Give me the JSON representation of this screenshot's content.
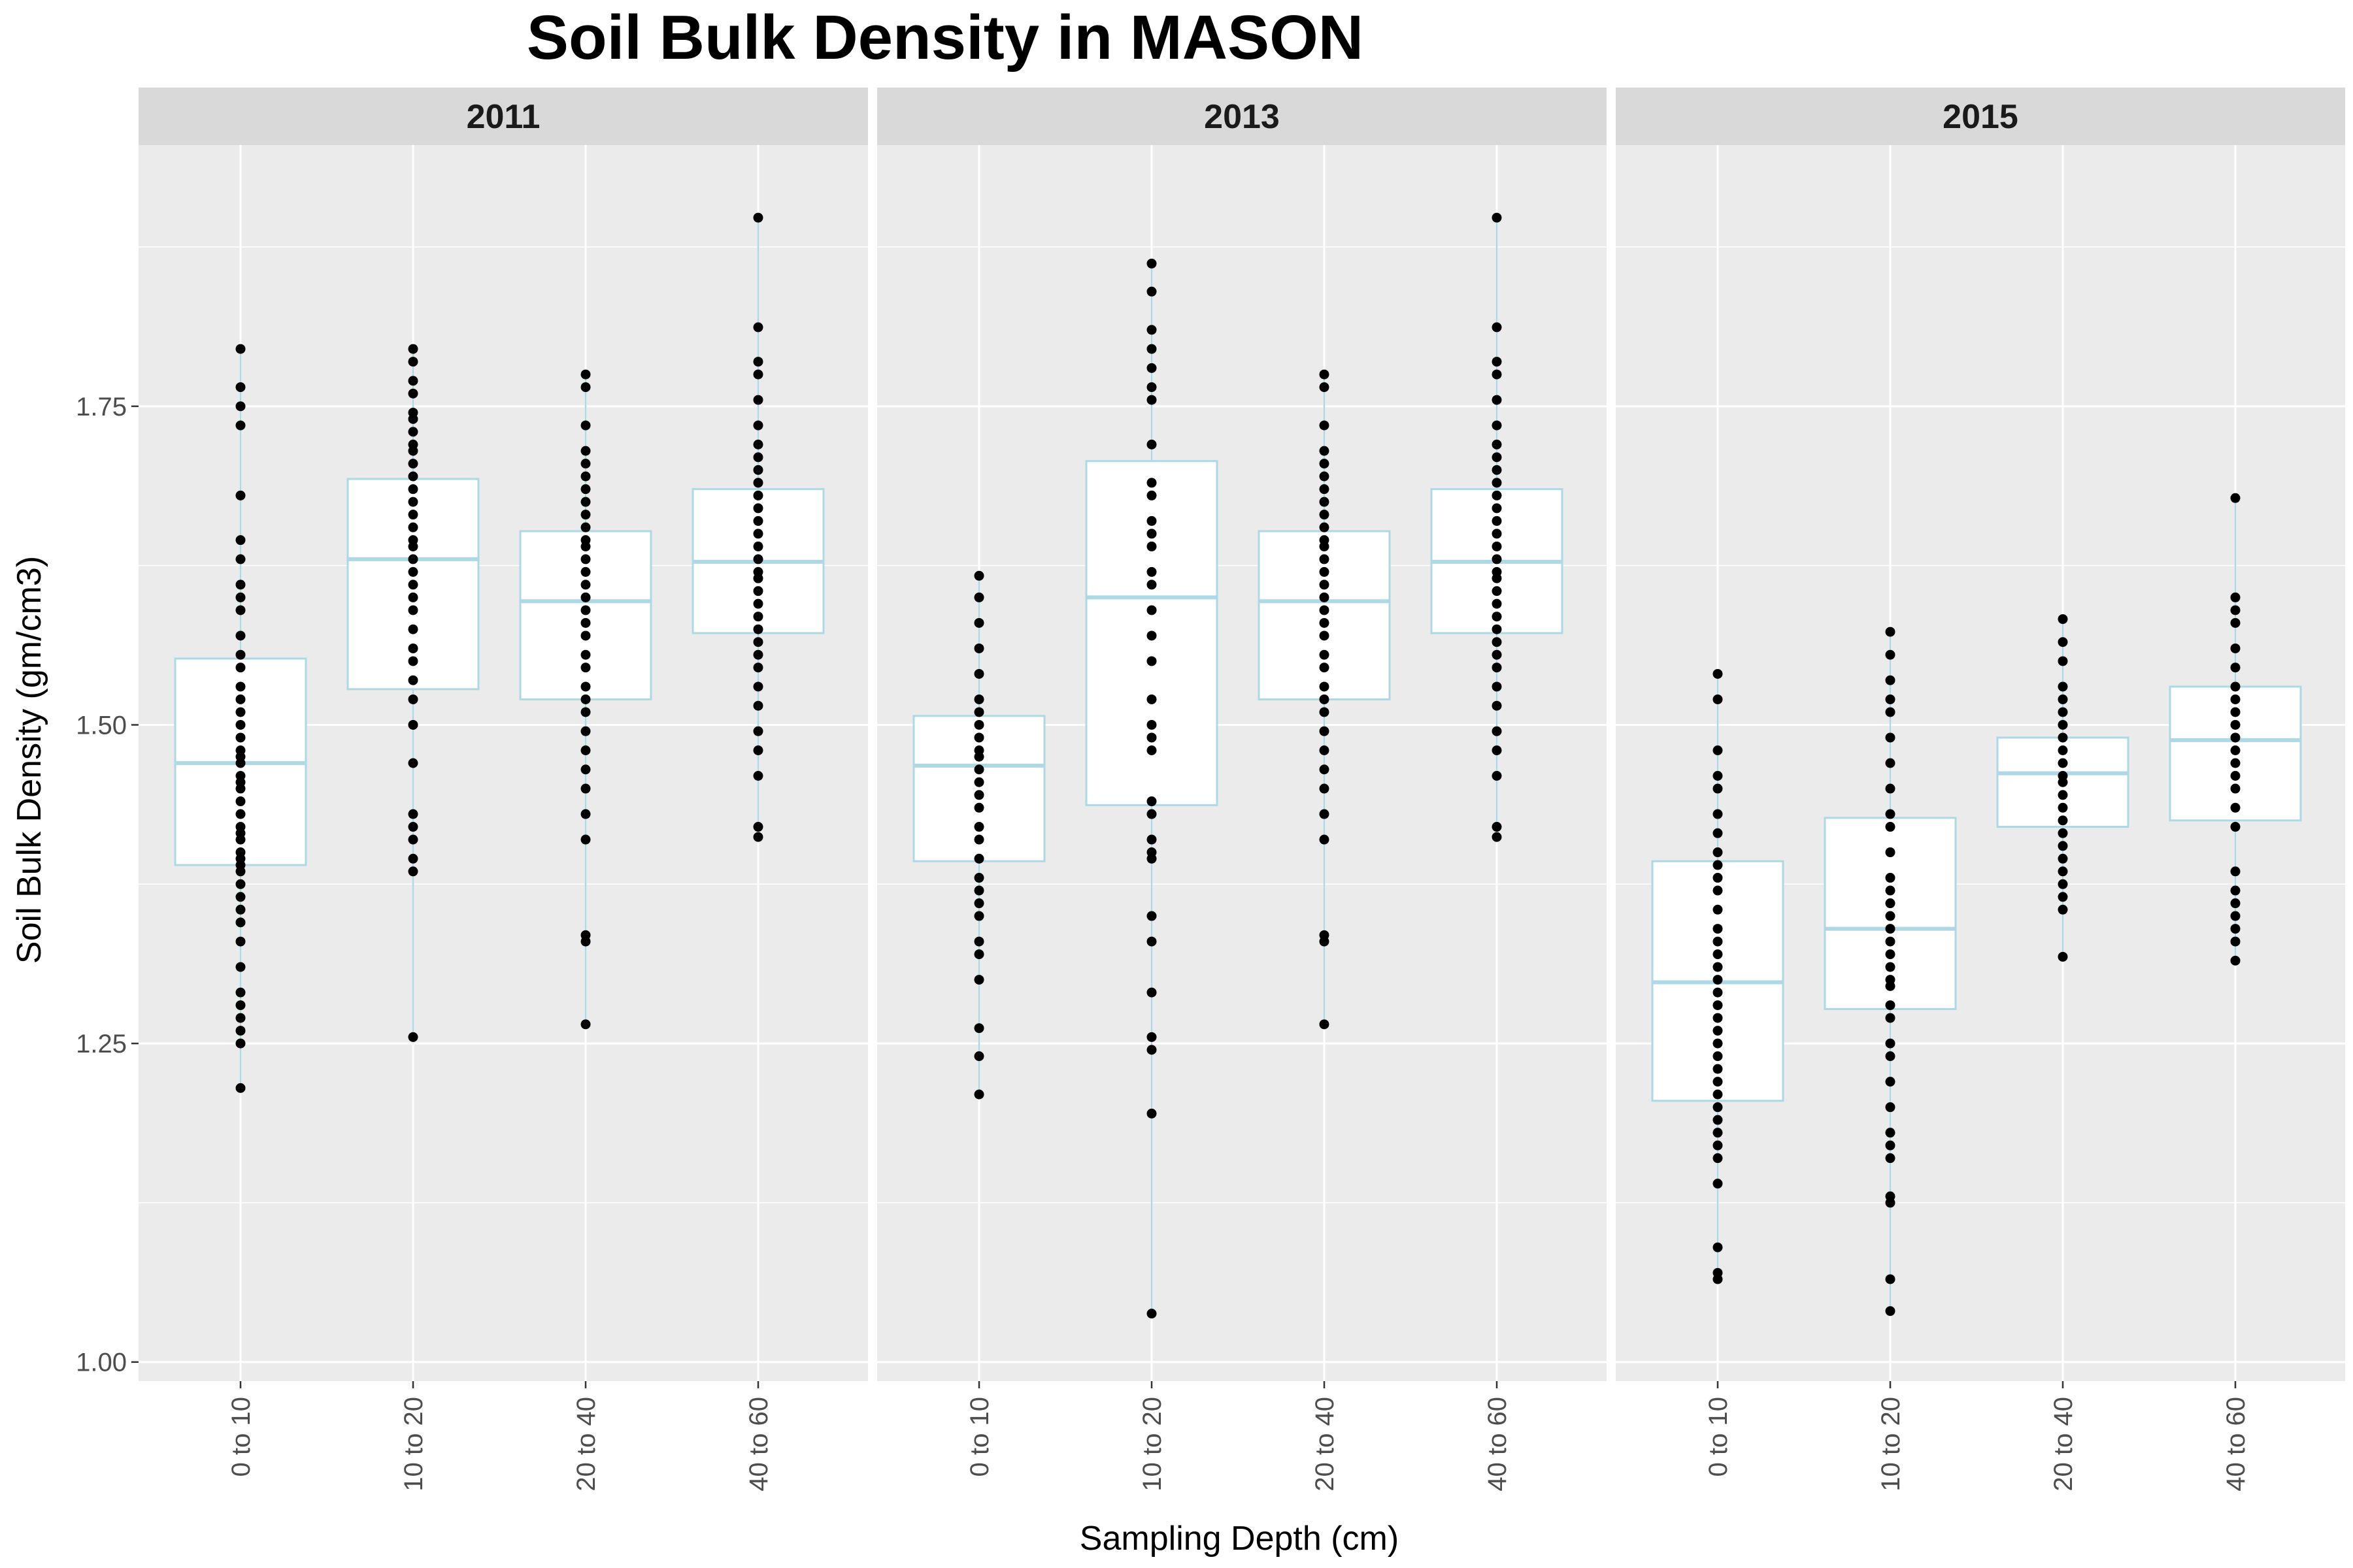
{
  "chart_data": {
    "type": "box",
    "title": "Soil Bulk Density in MASON",
    "xlabel": "Sampling Depth (cm)",
    "ylabel": "Soil Bulk Density (gm/cm3)",
    "ylim": [
      0.985,
      1.955
    ],
    "yticks": [
      "1.00",
      "1.25",
      "1.50",
      "1.75"
    ],
    "categories": [
      "0 to 10",
      "10 to 20",
      "20 to 40",
      "40 to 60"
    ],
    "grid": true,
    "colors": {
      "panel_bg": "#ebebeb",
      "grid": "#ffffff",
      "strip_bg": "#d9d9d9",
      "box_border": "#add8e6",
      "box_fill": "#ffffff",
      "point": "#000000"
    },
    "panels": [
      {
        "label": "2011",
        "boxes": [
          {
            "category": "0 to 10",
            "min": 1.215,
            "q1": 1.39,
            "median": 1.47,
            "q3": 1.552,
            "max": 1.795,
            "points": [
              1.215,
              1.25,
              1.26,
              1.27,
              1.28,
              1.29,
              1.31,
              1.33,
              1.345,
              1.355,
              1.365,
              1.375,
              1.385,
              1.39,
              1.395,
              1.4,
              1.41,
              1.415,
              1.42,
              1.43,
              1.44,
              1.45,
              1.455,
              1.46,
              1.47,
              1.475,
              1.48,
              1.49,
              1.5,
              1.51,
              1.52,
              1.53,
              1.545,
              1.555,
              1.57,
              1.59,
              1.6,
              1.61,
              1.63,
              1.645,
              1.68,
              1.735,
              1.75,
              1.765,
              1.795
            ]
          },
          {
            "category": "10 to 20",
            "min": 1.255,
            "q1": 1.528,
            "median": 1.63,
            "q3": 1.693,
            "max": 1.795,
            "points": [
              1.255,
              1.385,
              1.395,
              1.41,
              1.42,
              1.43,
              1.47,
              1.5,
              1.52,
              1.535,
              1.55,
              1.56,
              1.575,
              1.59,
              1.6,
              1.61,
              1.62,
              1.63,
              1.64,
              1.645,
              1.655,
              1.665,
              1.675,
              1.685,
              1.695,
              1.705,
              1.715,
              1.72,
              1.73,
              1.74,
              1.745,
              1.76,
              1.77,
              1.785,
              1.795
            ]
          },
          {
            "category": "20 to 40",
            "min": 1.265,
            "q1": 1.52,
            "median": 1.597,
            "q3": 1.652,
            "max": 1.775,
            "points": [
              1.265,
              1.33,
              1.335,
              1.41,
              1.43,
              1.45,
              1.465,
              1.48,
              1.495,
              1.51,
              1.52,
              1.53,
              1.545,
              1.555,
              1.57,
              1.58,
              1.59,
              1.6,
              1.61,
              1.62,
              1.63,
              1.64,
              1.645,
              1.655,
              1.665,
              1.675,
              1.685,
              1.695,
              1.705,
              1.715,
              1.735,
              1.765,
              1.775
            ]
          },
          {
            "category": "40 to 60",
            "min": 1.412,
            "q1": 1.572,
            "median": 1.628,
            "q3": 1.685,
            "max": 1.898,
            "points": [
              1.412,
              1.42,
              1.46,
              1.48,
              1.495,
              1.515,
              1.53,
              1.545,
              1.555,
              1.565,
              1.575,
              1.585,
              1.595,
              1.605,
              1.615,
              1.62,
              1.63,
              1.64,
              1.65,
              1.66,
              1.67,
              1.68,
              1.69,
              1.7,
              1.71,
              1.72,
              1.735,
              1.755,
              1.775,
              1.785,
              1.812,
              1.898
            ]
          }
        ]
      },
      {
        "label": "2013",
        "boxes": [
          {
            "category": "0 to 10",
            "min": 1.21,
            "q1": 1.393,
            "median": 1.468,
            "q3": 1.507,
            "max": 1.617,
            "points": [
              1.21,
              1.24,
              1.262,
              1.3,
              1.32,
              1.33,
              1.35,
              1.36,
              1.37,
              1.38,
              1.395,
              1.41,
              1.42,
              1.435,
              1.445,
              1.455,
              1.465,
              1.475,
              1.48,
              1.49,
              1.5,
              1.51,
              1.52,
              1.54,
              1.56,
              1.58,
              1.6,
              1.617
            ]
          },
          {
            "category": "10 to 20",
            "min": 1.038,
            "q1": 1.437,
            "median": 1.6,
            "q3": 1.707,
            "max": 1.862,
            "points": [
              1.038,
              1.195,
              1.245,
              1.255,
              1.29,
              1.33,
              1.35,
              1.395,
              1.4,
              1.41,
              1.43,
              1.44,
              1.48,
              1.49,
              1.5,
              1.52,
              1.55,
              1.57,
              1.59,
              1.61,
              1.62,
              1.64,
              1.65,
              1.66,
              1.68,
              1.69,
              1.72,
              1.755,
              1.765,
              1.78,
              1.795,
              1.81,
              1.84,
              1.862
            ]
          },
          {
            "category": "20 to 40",
            "min": 1.265,
            "q1": 1.52,
            "median": 1.597,
            "q3": 1.652,
            "max": 1.775,
            "points": [
              1.265,
              1.33,
              1.335,
              1.41,
              1.43,
              1.45,
              1.465,
              1.48,
              1.495,
              1.51,
              1.52,
              1.53,
              1.545,
              1.555,
              1.57,
              1.58,
              1.59,
              1.6,
              1.61,
              1.62,
              1.63,
              1.64,
              1.645,
              1.655,
              1.665,
              1.675,
              1.685,
              1.695,
              1.705,
              1.715,
              1.735,
              1.765,
              1.775
            ]
          },
          {
            "category": "40 to 60",
            "min": 1.412,
            "q1": 1.572,
            "median": 1.628,
            "q3": 1.685,
            "max": 1.898,
            "points": [
              1.412,
              1.42,
              1.46,
              1.48,
              1.495,
              1.515,
              1.53,
              1.545,
              1.555,
              1.565,
              1.575,
              1.585,
              1.595,
              1.605,
              1.615,
              1.62,
              1.63,
              1.64,
              1.65,
              1.66,
              1.67,
              1.68,
              1.69,
              1.7,
              1.71,
              1.72,
              1.735,
              1.755,
              1.775,
              1.785,
              1.812,
              1.898
            ]
          }
        ]
      },
      {
        "label": "2015",
        "boxes": [
          {
            "category": "0 to 10",
            "min": 1.065,
            "q1": 1.205,
            "median": 1.298,
            "q3": 1.393,
            "max": 1.54,
            "points": [
              1.065,
              1.07,
              1.09,
              1.14,
              1.16,
              1.17,
              1.18,
              1.19,
              1.2,
              1.21,
              1.22,
              1.23,
              1.24,
              1.25,
              1.26,
              1.27,
              1.28,
              1.29,
              1.3,
              1.31,
              1.32,
              1.33,
              1.34,
              1.355,
              1.37,
              1.38,
              1.39,
              1.4,
              1.415,
              1.43,
              1.45,
              1.46,
              1.48,
              1.52,
              1.54
            ]
          },
          {
            "category": "10 to 20",
            "min": 1.04,
            "q1": 1.277,
            "median": 1.34,
            "q3": 1.427,
            "max": 1.573,
            "points": [
              1.04,
              1.065,
              1.125,
              1.13,
              1.16,
              1.17,
              1.18,
              1.2,
              1.22,
              1.24,
              1.25,
              1.27,
              1.28,
              1.295,
              1.3,
              1.31,
              1.32,
              1.33,
              1.34,
              1.35,
              1.36,
              1.37,
              1.38,
              1.4,
              1.42,
              1.43,
              1.45,
              1.47,
              1.49,
              1.51,
              1.52,
              1.535,
              1.555,
              1.573
            ]
          },
          {
            "category": "20 to 40",
            "min": 1.318,
            "q1": 1.42,
            "median": 1.462,
            "q3": 1.49,
            "max": 1.583,
            "points": [
              1.318,
              1.355,
              1.365,
              1.375,
              1.385,
              1.395,
              1.405,
              1.415,
              1.425,
              1.435,
              1.445,
              1.455,
              1.46,
              1.47,
              1.48,
              1.49,
              1.5,
              1.51,
              1.52,
              1.53,
              1.55,
              1.565,
              1.583
            ]
          },
          {
            "category": "40 to 60",
            "min": 1.315,
            "q1": 1.425,
            "median": 1.488,
            "q3": 1.53,
            "max": 1.678,
            "points": [
              1.315,
              1.33,
              1.34,
              1.35,
              1.36,
              1.37,
              1.385,
              1.42,
              1.435,
              1.45,
              1.46,
              1.47,
              1.48,
              1.49,
              1.5,
              1.51,
              1.52,
              1.53,
              1.545,
              1.56,
              1.58,
              1.59,
              1.6,
              1.678
            ]
          }
        ]
      }
    ]
  }
}
